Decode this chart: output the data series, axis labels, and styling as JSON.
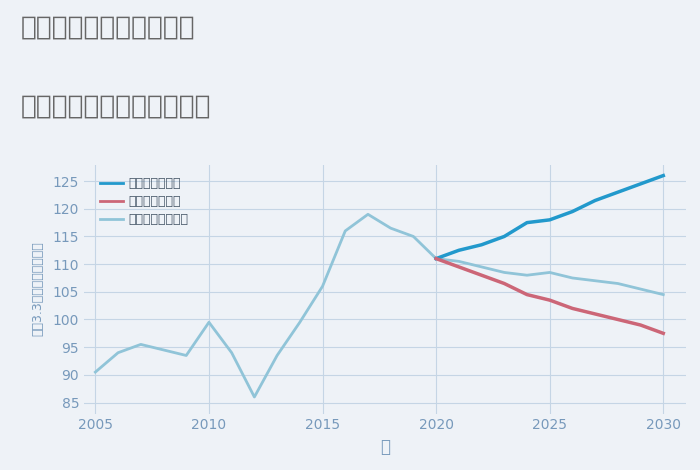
{
  "title_line1": "岐阜県多治見市白山町の",
  "title_line2": "中古マンションの価格推移",
  "xlabel": "年",
  "ylabel": "坪（3.3㎡）単価（万円）",
  "background_color": "#eef2f7",
  "plot_bg_color": "#eef2f7",
  "grid_color": "#c5d5e5",
  "ylim": [
    83,
    128
  ],
  "xlim": [
    2004.5,
    2031
  ],
  "yticks": [
    85,
    90,
    95,
    100,
    105,
    110,
    115,
    120,
    125
  ],
  "xticks": [
    2005,
    2010,
    2015,
    2020,
    2025,
    2030
  ],
  "normal_scenario": {
    "years": [
      2005,
      2006,
      2007,
      2008,
      2009,
      2010,
      2011,
      2012,
      2013,
      2014,
      2015,
      2016,
      2017,
      2018,
      2019,
      2020,
      2021,
      2022,
      2023,
      2024,
      2025,
      2026,
      2027,
      2028,
      2029,
      2030
    ],
    "values": [
      90.5,
      94.0,
      95.5,
      94.5,
      93.5,
      99.5,
      94.0,
      86.0,
      93.5,
      99.5,
      106.0,
      116.0,
      119.0,
      116.5,
      115.0,
      111.0,
      110.5,
      109.5,
      108.5,
      108.0,
      108.5,
      107.5,
      107.0,
      106.5,
      105.5,
      104.5
    ],
    "color": "#90c4d8",
    "label": "ノーマルシナリオ",
    "linewidth": 2.0
  },
  "good_scenario": {
    "years": [
      2020,
      2021,
      2022,
      2023,
      2024,
      2025,
      2026,
      2027,
      2028,
      2029,
      2030
    ],
    "values": [
      111.0,
      112.5,
      113.5,
      115.0,
      117.5,
      118.0,
      119.5,
      121.5,
      123.0,
      124.5,
      126.0
    ],
    "color": "#2299cc",
    "label": "グッドシナリオ",
    "linewidth": 2.5
  },
  "bad_scenario": {
    "years": [
      2020,
      2021,
      2022,
      2023,
      2024,
      2025,
      2026,
      2027,
      2028,
      2029,
      2030
    ],
    "values": [
      111.0,
      109.5,
      108.0,
      106.5,
      104.5,
      103.5,
      102.0,
      101.0,
      100.0,
      99.0,
      97.5
    ],
    "color": "#cc6677",
    "label": "バッドシナリオ",
    "linewidth": 2.5
  },
  "title_color": "#666666",
  "title_fontsize": 19,
  "axis_label_color": "#7799bb",
  "tick_color": "#7799bb",
  "tick_fontsize": 10,
  "legend_text_color": "#445566"
}
